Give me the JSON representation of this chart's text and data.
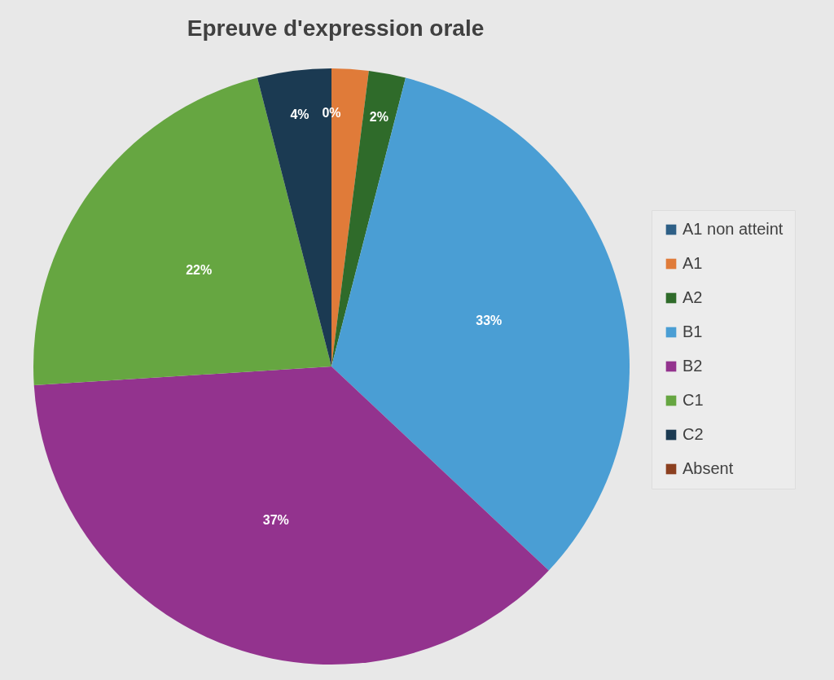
{
  "chart_data": {
    "type": "pie",
    "title": "Epreuve d'expression orale",
    "categories": [
      "A1 non atteint",
      "A1",
      "A2",
      "B1",
      "B2",
      "C1",
      "C2",
      "Absent"
    ],
    "values": [
      0,
      2,
      2,
      33,
      37,
      22,
      4,
      0
    ],
    "colors": [
      "#2e5f86",
      "#e07b39",
      "#2f6b2a",
      "#4a9ed4",
      "#93338e",
      "#66a641",
      "#1b3a52",
      "#8b3f1f"
    ],
    "value_labels": [
      "0%",
      null,
      "2%",
      "33%",
      "37%",
      "22%",
      "4%",
      null
    ],
    "legend": "right"
  }
}
